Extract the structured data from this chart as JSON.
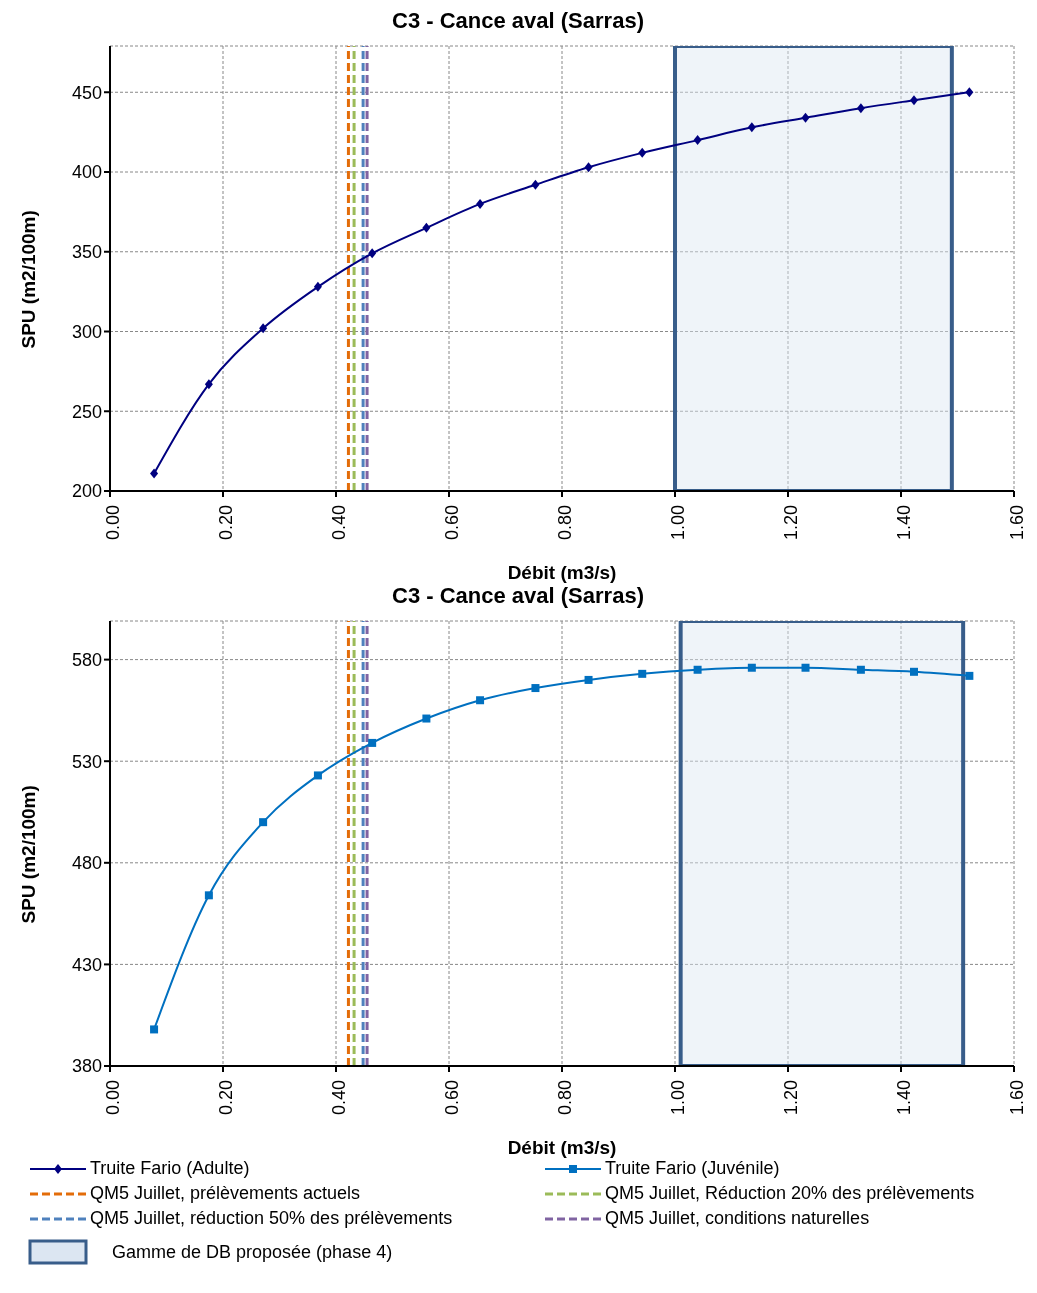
{
  "chart_data": [
    {
      "type": "line",
      "title": "C3 - Cance aval (Sarras)",
      "xlabel": "Débit (m3/s)",
      "ylabel": "SPU (m2/100m)",
      "xlim": [
        0,
        1.6
      ],
      "xticks": [
        {
          "value": 0,
          "label": "0.00"
        },
        {
          "value": 0.2,
          "label": "0.20"
        },
        {
          "value": 0.4,
          "label": "0.40"
        },
        {
          "value": 0.6,
          "label": "0.60"
        },
        {
          "value": 0.8,
          "label": "0.80"
        },
        {
          "value": 1.0,
          "label": "1.00"
        },
        {
          "value": 1.2,
          "label": "1.20"
        },
        {
          "value": 1.4,
          "label": "1.40"
        },
        {
          "value": 1.6,
          "label": "1.60"
        }
      ],
      "ylim": [
        200,
        479
      ],
      "yticks": [
        200,
        250,
        300,
        350,
        400,
        450
      ],
      "grid": true,
      "line_style": "solid",
      "legend": "bottom",
      "x": [
        0.078,
        0.175,
        0.271,
        0.368,
        0.464,
        0.56,
        0.655,
        0.753,
        0.847,
        0.942,
        1.04,
        1.136,
        1.231,
        1.329,
        1.423,
        1.521
      ],
      "series": [
        {
          "name": "Truite Fario (Adulte)",
          "color": "#000080",
          "marker": "diamond",
          "values": [
            211,
            267,
            302,
            328,
            349,
            365,
            380,
            392,
            403,
            412,
            420,
            428,
            434,
            440,
            445,
            450
          ]
        }
      ],
      "ref_lines": [
        {
          "axis": "x",
          "value": 0.422,
          "label": "QM5 Juillet, prélèvements actuels",
          "color": "#e36c09",
          "line_style": "dashed"
        },
        {
          "axis": "x",
          "value": 0.432,
          "label": "QM5 Juillet, Réduction 20% des prélèvements",
          "color": "#9bbb59",
          "line_style": "dashed"
        },
        {
          "axis": "x",
          "value": 0.448,
          "label": "QM5 Juillet, réduction 50% des prélèvements",
          "color": "#4f81bd",
          "line_style": "dashed"
        },
        {
          "axis": "x",
          "value": 0.455,
          "label": "QM5 Juillet, conditions naturelles",
          "color": "#8064a2",
          "line_style": "dashed"
        }
      ],
      "bands": [
        {
          "axis": "x",
          "from": 1.0,
          "to": 1.49,
          "label": "Gamme de DB proposée (phase 4)",
          "color": "#dce6f2"
        }
      ]
    },
    {
      "type": "line",
      "title": "C3 - Cance aval (Sarras)",
      "xlabel": "Débit (m3/s)",
      "ylabel": "SPU (m2/100m)",
      "xlim": [
        0,
        1.6
      ],
      "xticks": [
        {
          "value": 0,
          "label": "0.00"
        },
        {
          "value": 0.2,
          "label": "0.20"
        },
        {
          "value": 0.4,
          "label": "0.40"
        },
        {
          "value": 0.6,
          "label": "0.60"
        },
        {
          "value": 0.8,
          "label": "0.80"
        },
        {
          "value": 1.0,
          "label": "1.00"
        },
        {
          "value": 1.2,
          "label": "1.20"
        },
        {
          "value": 1.4,
          "label": "1.40"
        },
        {
          "value": 1.6,
          "label": "1.60"
        }
      ],
      "ylim": [
        380,
        599
      ],
      "yticks": [
        380,
        430,
        480,
        530,
        580
      ],
      "grid": true,
      "line_style": "solid",
      "legend": "bottom",
      "x": [
        0.078,
        0.175,
        0.271,
        0.368,
        0.464,
        0.56,
        0.655,
        0.753,
        0.847,
        0.942,
        1.04,
        1.136,
        1.231,
        1.329,
        1.423,
        1.521
      ],
      "series": [
        {
          "name": "Truite Fario (Juvénile)",
          "color": "#0070c0",
          "marker": "square",
          "values": [
            398,
            464,
            500,
            523,
            539,
            551,
            560,
            566,
            570,
            573,
            575,
            576,
            576,
            575,
            574,
            572
          ]
        }
      ],
      "ref_lines": [
        {
          "axis": "x",
          "value": 0.422,
          "color": "#e36c09",
          "line_style": "dashed"
        },
        {
          "axis": "x",
          "value": 0.432,
          "color": "#9bbb59",
          "line_style": "dashed"
        },
        {
          "axis": "x",
          "value": 0.448,
          "color": "#4f81bd",
          "line_style": "dashed"
        },
        {
          "axis": "x",
          "value": 0.455,
          "color": "#8064a2",
          "line_style": "dashed"
        }
      ],
      "bands": [
        {
          "axis": "x",
          "from": 1.01,
          "to": 1.51,
          "color": "#dce6f2"
        }
      ]
    }
  ]
}
